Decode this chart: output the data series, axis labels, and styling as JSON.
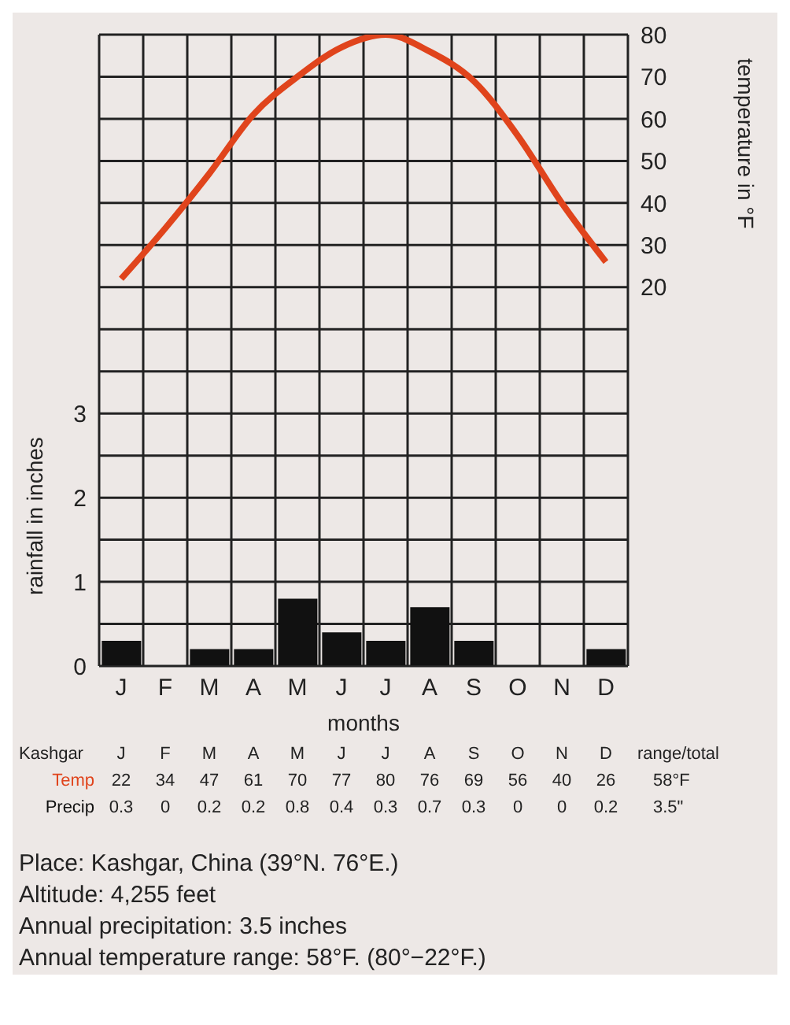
{
  "chart_data": {
    "type": "bar",
    "xlabel": "months",
    "ylabel": "rainfall in inches",
    "y2label": "temperature in °F",
    "categories": [
      "J",
      "F",
      "M",
      "A",
      "M",
      "J",
      "J",
      "A",
      "S",
      "O",
      "N",
      "D"
    ],
    "series": [
      {
        "name": "Precip",
        "color": "#111111",
        "values": [
          0.3,
          0,
          0.2,
          0.2,
          0.8,
          0.4,
          0.3,
          0.7,
          0.3,
          0,
          0,
          0.2
        ]
      },
      {
        "name": "Temp",
        "type": "line",
        "axis": "y2",
        "color": "#e0441c",
        "values": [
          22,
          34,
          47,
          61,
          70,
          77,
          80,
          76,
          69,
          56,
          40,
          26
        ]
      }
    ],
    "ylim": [
      0,
      7.5
    ],
    "yticks": [
      0,
      {
        "value": 0.5,
        "label": null
      },
      1,
      {
        "value": 1.5,
        "label": null
      },
      2,
      {
        "value": 2.5,
        "label": null
      },
      3,
      {
        "value": 3.5,
        "label": null
      },
      {
        "value": 4,
        "label": null
      },
      {
        "value": 4.5,
        "label": null
      },
      {
        "value": 5,
        "label": null
      },
      {
        "value": 5.5,
        "label": null
      },
      {
        "value": 6,
        "label": null
      },
      {
        "value": 6.5,
        "label": null
      },
      {
        "value": 7,
        "label": null
      },
      {
        "value": 7.5,
        "label": null
      }
    ],
    "y2lim": [
      -70,
      80
    ],
    "y2ticks": [
      20,
      30,
      40,
      50,
      60,
      70,
      80
    ],
    "grid": true,
    "marker": "none",
    "line_style": "solid",
    "data_labels": true,
    "annotations": [
      "Kashgar",
      "range/total",
      "58°F",
      "3.5\"",
      "Place: Kashgar, China (39°N. 76°E.)",
      "Altitude: 4,255 feet",
      "Annual precipitation: 3.5 inches",
      "Annual temperature range: 58°F. (80°−22°F.)"
    ]
  }
}
